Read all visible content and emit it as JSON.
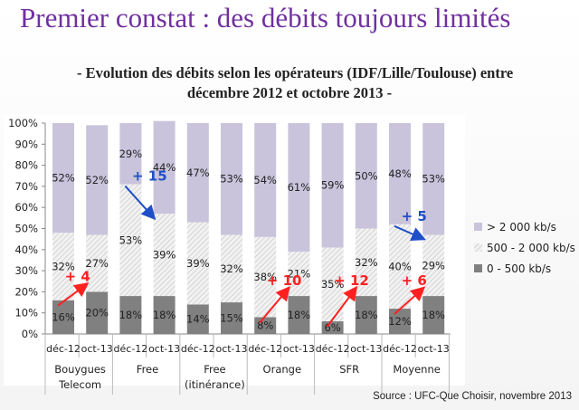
{
  "title": "Premier constat : des débits toujours limités",
  "subtitle_line1": "- Evolution des débits selon les opérateurs (IDF/Lille/Toulouse) entre",
  "subtitle_line2": "décembre 2012 et octobre 2013 -",
  "source": "Source : UFC-Que Choisir, novembre 2013",
  "colors": {
    "high": "#c9c4dc",
    "mid_bg": "#f0f0f0",
    "mid_hatch": "#c8c8c8",
    "low": "#808080",
    "red": "#ff2020",
    "blue": "#1f4fc8"
  },
  "chart_data": {
    "type": "bar",
    "stacked": true,
    "title": "Evolution des débits selon les opérateurs (IDF/Lille/Toulouse) entre décembre 2012 et octobre 2013",
    "ylim": [
      0,
      100
    ],
    "yticks": [
      "0%",
      "10%",
      "20%",
      "30%",
      "40%",
      "50%",
      "60%",
      "70%",
      "80%",
      "90%",
      "100%"
    ],
    "groups": [
      "Bouygues Telecom",
      "Free",
      "Free (itinérance)",
      "Orange",
      "SFR",
      "Moyenne"
    ],
    "group_lines": [
      [
        "Bouygues",
        "Telecom"
      ],
      [
        "Free"
      ],
      [
        "Free",
        "(itinérance)"
      ],
      [
        "Orange"
      ],
      [
        "SFR"
      ],
      [
        "Moyenne"
      ]
    ],
    "categories": [
      "déc-12",
      "oct-13",
      "déc-12",
      "oct-13",
      "déc-12",
      "oct-13",
      "déc-12",
      "oct-13",
      "déc-12",
      "oct-13",
      "déc-12",
      "oct-13"
    ],
    "series": [
      {
        "name": "0 - 500 kb/s",
        "values": [
          16,
          20,
          18,
          18,
          14,
          15,
          8,
          18,
          6,
          18,
          12,
          18
        ]
      },
      {
        "name": "500 - 2 000 kb/s",
        "values": [
          32,
          27,
          53,
          39,
          39,
          32,
          38,
          21,
          35,
          32,
          40,
          29
        ]
      },
      {
        "name": "> 2 000 kb/s",
        "values": [
          52,
          52,
          29,
          44,
          47,
          53,
          54,
          61,
          59,
          50,
          48,
          53
        ]
      }
    ],
    "legend": {
      "placement": "right",
      "entries": [
        "> 2 000 kb/s",
        "500 - 2 000 kb/s",
        "0 - 500 kb/s"
      ]
    },
    "annotations": [
      {
        "text": "+ 4",
        "color": "red",
        "from_bar": 0,
        "to_bar": 1,
        "series": 0
      },
      {
        "text": "+ 15",
        "color": "blue",
        "from_bar": 2,
        "to_bar": 3,
        "series": 1
      },
      {
        "text": "+ 10",
        "color": "red",
        "from_bar": 6,
        "to_bar": 7,
        "series": 0
      },
      {
        "text": "+ 12",
        "color": "red",
        "from_bar": 8,
        "to_bar": 9,
        "series": 0
      },
      {
        "text": "+ 6",
        "color": "red",
        "from_bar": 10,
        "to_bar": 11,
        "series": 0
      },
      {
        "text": "+ 5",
        "color": "blue",
        "from_bar": 10,
        "to_bar": 11,
        "series": 1
      }
    ]
  }
}
